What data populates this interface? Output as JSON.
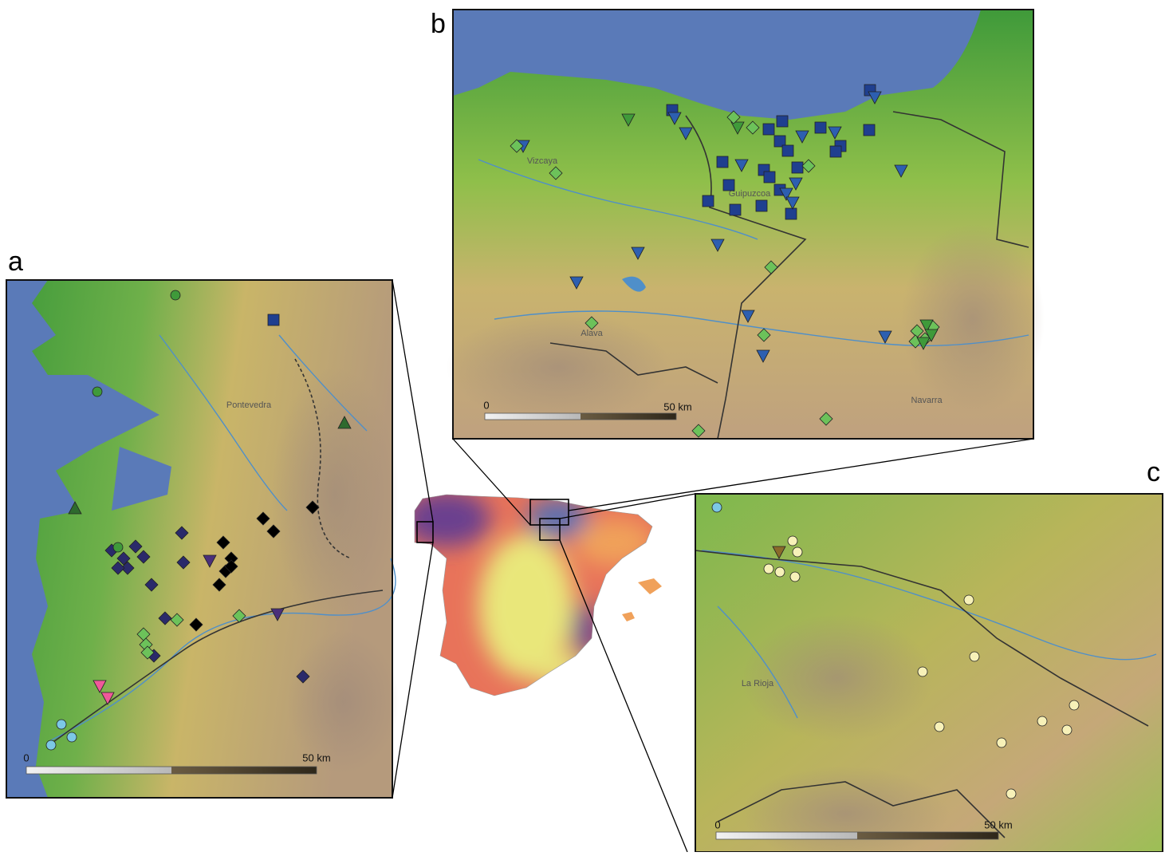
{
  "panels": [
    {
      "letter": "a",
      "place_labels": [
        "Pontevedra"
      ],
      "scale_bar": {
        "start": "0",
        "end": "50 km"
      }
    },
    {
      "letter": "b",
      "place_labels": [
        "Vizcaya",
        "Guipuzcoa",
        "Alava",
        "Navarra"
      ],
      "scale_bar": {
        "start": "0",
        "end": "50 km"
      }
    },
    {
      "letter": "c",
      "place_labels": [
        "La Rioja"
      ],
      "scale_bar": {
        "start": "0",
        "end": "50 km"
      }
    }
  ]
}
